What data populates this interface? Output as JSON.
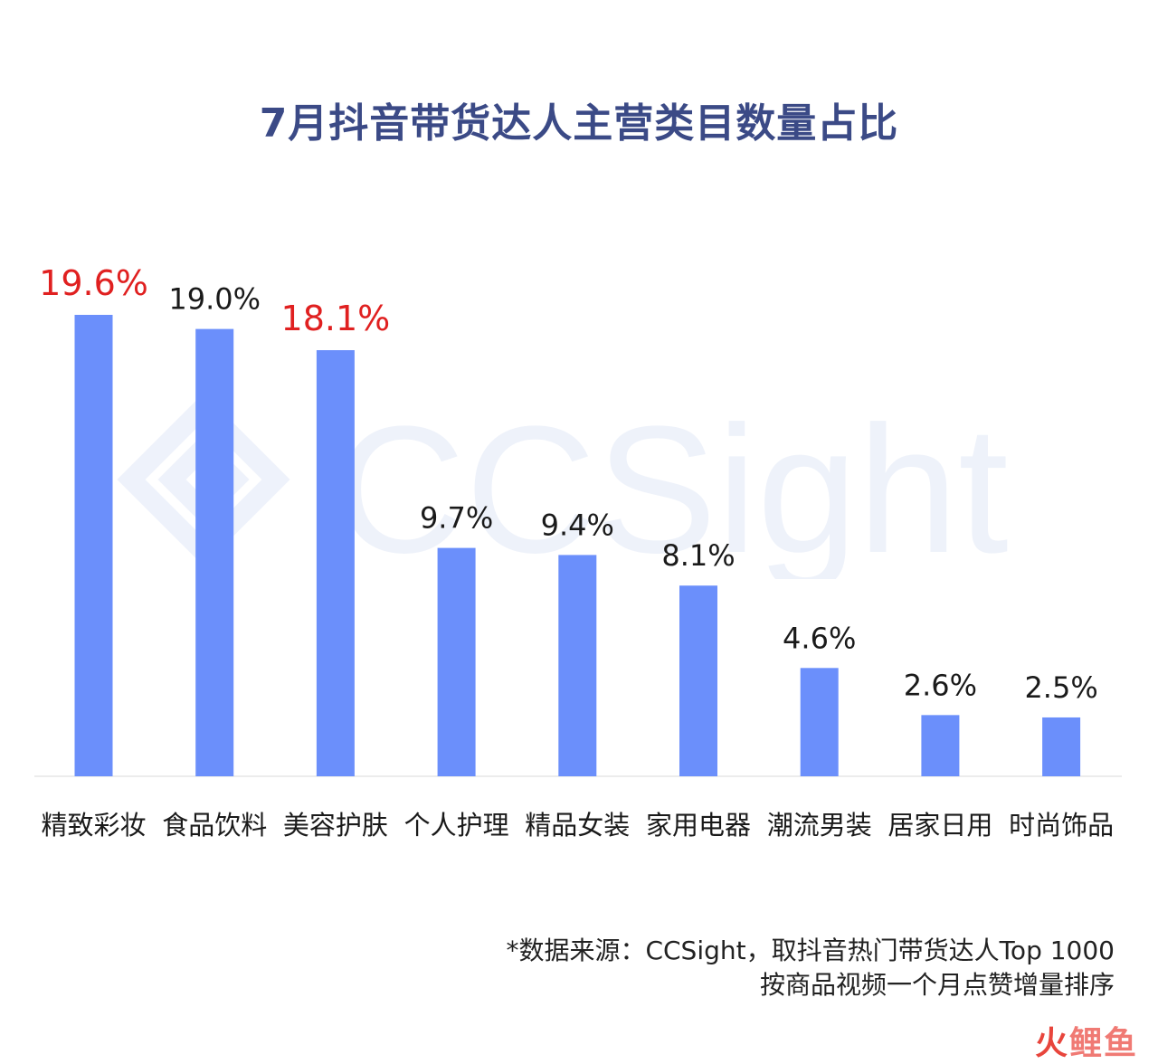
{
  "chart_data": {
    "type": "bar",
    "title": "7月抖音带货达人主营类目数量占比",
    "categories": [
      "精致彩妆",
      "食品饮料",
      "美容护肤",
      "个人护理",
      "精品女装",
      "家用电器",
      "潮流男装",
      "居家日用",
      "时尚饰品"
    ],
    "values": [
      19.6,
      19.0,
      18.1,
      9.7,
      9.4,
      8.1,
      4.6,
      2.6,
      2.5
    ],
    "value_labels": [
      "19.6%",
      "19.0%",
      "18.1%",
      "9.7%",
      "9.4%",
      "8.1%",
      "4.6%",
      "2.6%",
      "2.5%"
    ],
    "highlighted": [
      0,
      2
    ],
    "ylim": [
      0,
      19.6
    ],
    "bar_color": "#6b8ffb",
    "highlight_label_color": "#e02020",
    "label_color": "#1a1a1a",
    "grid": false
  },
  "watermark": {
    "text": "CCSight"
  },
  "source": {
    "line1": "*数据来源：CCSight，取抖音热门带货达人Top 1000",
    "line2": "按商品视频一个月点赞增量排序"
  },
  "brand": {
    "part1": "火",
    "part2": "鲤鱼"
  }
}
